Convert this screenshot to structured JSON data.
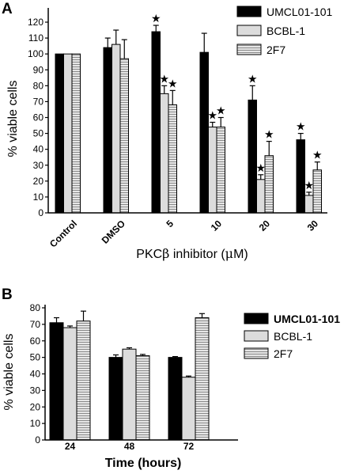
{
  "colors": {
    "bar_black": "#000000",
    "bar_light": "#dcdcdc",
    "bar_stripe_bg": "#e6e6e6",
    "stripe_line": "#8a8a8a",
    "edge": "#000000"
  },
  "chart_data": [
    {
      "type": "bar",
      "panel_label": "A",
      "title": "",
      "categories": [
        "Control",
        "DMSO",
        "5",
        "10",
        "20",
        "30"
      ],
      "xlabel_parts": [
        "PKC",
        "β",
        " inhibitor (",
        "μ",
        "M)"
      ],
      "ylabel": "% viable cells",
      "ylim": [
        0,
        120
      ],
      "yticks": [
        0,
        10,
        20,
        30,
        40,
        50,
        60,
        70,
        80,
        90,
        100,
        110,
        120
      ],
      "legend_position": "top-right",
      "series": [
        {
          "name": "UMCL01-101",
          "style": "black",
          "values": [
            100,
            104,
            114,
            101,
            71,
            46
          ],
          "errors": [
            0,
            6,
            4,
            12,
            9,
            4
          ],
          "significant": [
            false,
            false,
            true,
            false,
            true,
            true
          ]
        },
        {
          "name": "BCBL-1",
          "style": "light",
          "values": [
            100,
            106,
            75,
            54,
            21,
            11
          ],
          "errors": [
            0,
            9,
            5,
            3,
            3,
            2
          ],
          "significant": [
            false,
            false,
            true,
            true,
            true,
            true
          ]
        },
        {
          "name": "2F7",
          "style": "striped",
          "values": [
            100,
            97,
            68,
            54,
            36,
            27
          ],
          "errors": [
            0,
            12,
            9,
            6,
            9,
            5
          ],
          "significant": [
            false,
            false,
            true,
            true,
            true,
            true
          ]
        }
      ]
    },
    {
      "type": "bar",
      "panel_label": "B",
      "title": "",
      "categories": [
        "24",
        "48",
        "72"
      ],
      "xlabel": "Time (hours)",
      "ylabel": "% viable cells",
      "ylim": [
        0,
        80
      ],
      "yticks": [
        0,
        10,
        20,
        30,
        40,
        50,
        60,
        70,
        80
      ],
      "legend_position": "right",
      "series": [
        {
          "name": "UMCL01-101",
          "style": "black",
          "values": [
            71,
            50,
            50
          ],
          "errors": [
            3,
            1.5,
            0.5
          ]
        },
        {
          "name": "BCBL-1",
          "style": "light",
          "values": [
            68,
            55,
            38
          ],
          "errors": [
            1,
            0.8,
            0.7
          ]
        },
        {
          "name": "2F7",
          "style": "striped",
          "values": [
            72,
            51,
            74
          ],
          "errors": [
            6,
            0.8,
            2.5
          ]
        }
      ]
    }
  ]
}
